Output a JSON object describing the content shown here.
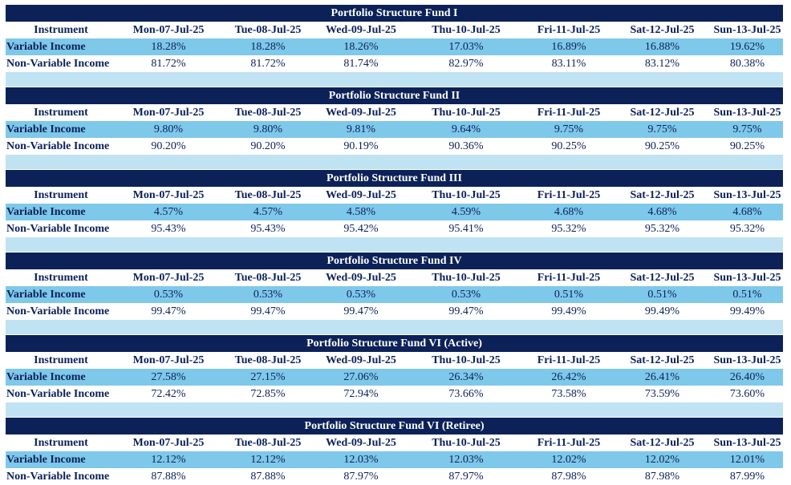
{
  "columns": {
    "instrument": "Instrument",
    "dates": [
      "Mon-07-Jul-25",
      "Tue-08-Jul-25",
      "Wed-09-Jul-25",
      "Thu-10-Jul-25",
      "Fri-11-Jul-25",
      "Sat-12-Jul-25",
      "Sun-13-Jul-25"
    ]
  },
  "row_labels": {
    "variable": "Variable Income",
    "non_variable": "Non-Variable Income"
  },
  "colors": {
    "title_background": "#0b2158",
    "title_text": "#ffffff",
    "variable_row_background": "#7ec8ea",
    "spacer_background": "#bfe3f3",
    "body_text": "#0b2158"
  },
  "funds": [
    {
      "title": "Portfolio Structure Fund I",
      "variable": [
        "18.28%",
        "18.28%",
        "18.26%",
        "17.03%",
        "16.89%",
        "16.88%",
        "19.62%"
      ],
      "non_variable": [
        "81.72%",
        "81.72%",
        "81.74%",
        "82.97%",
        "83.11%",
        "83.12%",
        "80.38%"
      ]
    },
    {
      "title": "Portfolio Structure Fund II",
      "variable": [
        "9.80%",
        "9.80%",
        "9.81%",
        "9.64%",
        "9.75%",
        "9.75%",
        "9.75%"
      ],
      "non_variable": [
        "90.20%",
        "90.20%",
        "90.19%",
        "90.36%",
        "90.25%",
        "90.25%",
        "90.25%"
      ]
    },
    {
      "title": "Portfolio Structure Fund III",
      "variable": [
        "4.57%",
        "4.57%",
        "4.58%",
        "4.59%",
        "4.68%",
        "4.68%",
        "4.68%"
      ],
      "non_variable": [
        "95.43%",
        "95.43%",
        "95.42%",
        "95.41%",
        "95.32%",
        "95.32%",
        "95.32%"
      ]
    },
    {
      "title": "Portfolio Structure Fund IV",
      "variable": [
        "0.53%",
        "0.53%",
        "0.53%",
        "0.53%",
        "0.51%",
        "0.51%",
        "0.51%"
      ],
      "non_variable": [
        "99.47%",
        "99.47%",
        "99.47%",
        "99.47%",
        "99.49%",
        "99.49%",
        "99.49%"
      ]
    },
    {
      "title": "Portfolio Structure Fund VI (Active)",
      "variable": [
        "27.58%",
        "27.15%",
        "27.06%",
        "26.34%",
        "26.42%",
        "26.41%",
        "26.40%"
      ],
      "non_variable": [
        "72.42%",
        "72.85%",
        "72.94%",
        "73.66%",
        "73.58%",
        "73.59%",
        "73.60%"
      ]
    },
    {
      "title": "Portfolio Structure Fund VI (Retiree)",
      "variable": [
        "12.12%",
        "12.12%",
        "12.03%",
        "12.03%",
        "12.02%",
        "12.02%",
        "12.01%"
      ],
      "non_variable": [
        "87.88%",
        "87.88%",
        "87.97%",
        "87.97%",
        "87.98%",
        "87.98%",
        "87.99%"
      ]
    }
  ]
}
